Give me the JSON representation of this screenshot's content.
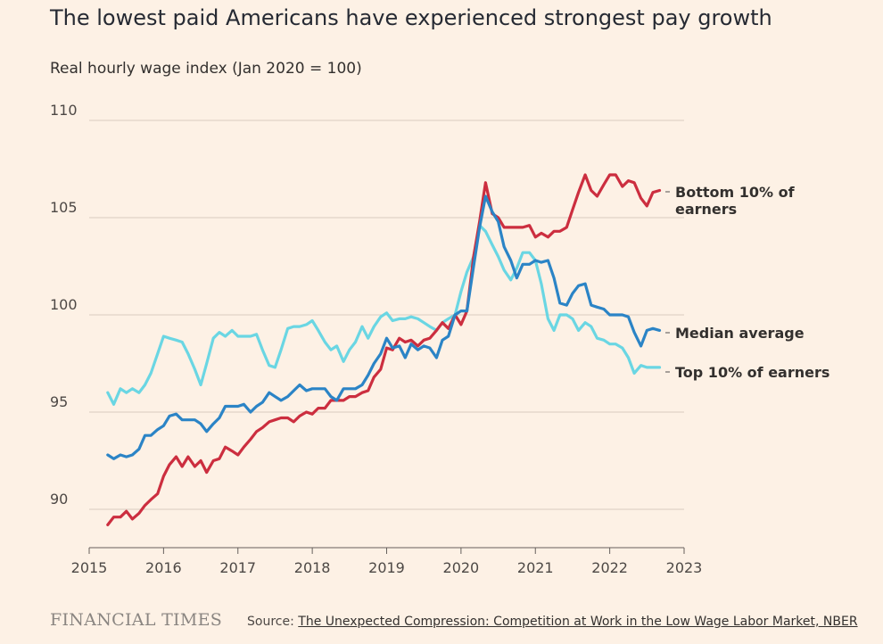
{
  "header": {
    "title": "The lowest paid Americans have experienced strongest pay growth",
    "subtitle": "Real hourly wage index (Jan 2020 = 100)"
  },
  "footer": {
    "brand": "FINANCIAL TIMES",
    "source_prefix": "Source: ",
    "source_link": "The Unexpected Compression: Competition at Work in the Low Wage Labor Market, NBER"
  },
  "colors": {
    "background": "#fdf1e5",
    "grid": "#d9cbbf",
    "bottom10": "#cc2e3f",
    "median": "#2b84c6",
    "top10": "#6ad6e3"
  },
  "chart_data": {
    "type": "line",
    "title": "The lowest paid Americans have experienced strongest pay growth",
    "ylabel": "Real hourly wage index (Jan 2020 = 100)",
    "xlabel": "",
    "xlim": [
      2015,
      2023
    ],
    "ylim": [
      88,
      110
    ],
    "yticks": [
      90,
      95,
      100,
      105,
      110
    ],
    "xticks": [
      2015,
      2016,
      2017,
      2018,
      2019,
      2020,
      2021,
      2022,
      2023
    ],
    "grid": true,
    "legend": "direct labels at right end of lines",
    "series": [
      {
        "name": "Bottom 10% of earners",
        "label_lines": [
          "Bottom 10% of",
          "earners"
        ],
        "color": "#cc2e3f",
        "x": [
          2015.25,
          2015.33,
          2015.42,
          2015.5,
          2015.58,
          2015.67,
          2015.75,
          2015.83,
          2015.92,
          2016,
          2016.08,
          2016.17,
          2016.25,
          2016.33,
          2016.42,
          2016.5,
          2016.58,
          2016.67,
          2016.75,
          2016.83,
          2016.92,
          2017,
          2017.08,
          2017.17,
          2017.25,
          2017.33,
          2017.42,
          2017.5,
          2017.58,
          2017.67,
          2017.75,
          2017.83,
          2017.92,
          2018,
          2018.08,
          2018.17,
          2018.25,
          2018.33,
          2018.42,
          2018.5,
          2018.58,
          2018.67,
          2018.75,
          2018.83,
          2018.92,
          2019,
          2019.08,
          2019.17,
          2019.25,
          2019.33,
          2019.42,
          2019.5,
          2019.58,
          2019.67,
          2019.75,
          2019.83,
          2019.92,
          2020,
          2020.08,
          2020.17,
          2020.25,
          2020.33,
          2020.42,
          2020.5,
          2020.58,
          2020.67,
          2020.75,
          2020.83,
          2020.92,
          2021,
          2021.08,
          2021.17,
          2021.25,
          2021.33,
          2021.42,
          2021.5,
          2021.58,
          2021.67,
          2021.75,
          2021.83,
          2021.92,
          2022,
          2022.08,
          2022.17,
          2022.25,
          2022.33,
          2022.42,
          2022.5,
          2022.58,
          2022.67
        ],
        "values": [
          89.2,
          89.6,
          89.6,
          89.9,
          89.5,
          89.8,
          90.2,
          90.5,
          90.8,
          91.7,
          92.3,
          92.7,
          92.2,
          92.7,
          92.2,
          92.5,
          91.9,
          92.5,
          92.6,
          93.2,
          93.0,
          92.8,
          93.2,
          93.6,
          94.0,
          94.2,
          94.5,
          94.6,
          94.7,
          94.7,
          94.5,
          94.8,
          95.0,
          94.9,
          95.2,
          95.2,
          95.6,
          95.6,
          95.6,
          95.8,
          95.8,
          96.0,
          96.1,
          96.8,
          97.2,
          98.3,
          98.2,
          98.8,
          98.6,
          98.7,
          98.4,
          98.7,
          98.8,
          99.2,
          99.6,
          99.3,
          100.0,
          99.5,
          100.2,
          103.0,
          104.8,
          106.8,
          105.2,
          105.0,
          104.5,
          104.5,
          104.5,
          104.5,
          104.6,
          104.0,
          104.2,
          104.0,
          104.3,
          104.3,
          104.5,
          105.4,
          106.3,
          107.2,
          106.4,
          106.1,
          106.7,
          107.2,
          107.2,
          106.6,
          106.9,
          106.8,
          106.0,
          105.6,
          106.3,
          106.4
        ]
      },
      {
        "name": "Median average",
        "label_lines": [
          "Median average"
        ],
        "color": "#2b84c6",
        "x": [
          2015.25,
          2015.33,
          2015.42,
          2015.5,
          2015.58,
          2015.67,
          2015.75,
          2015.83,
          2015.92,
          2016,
          2016.08,
          2016.17,
          2016.25,
          2016.33,
          2016.42,
          2016.5,
          2016.58,
          2016.67,
          2016.75,
          2016.83,
          2016.92,
          2017,
          2017.08,
          2017.17,
          2017.25,
          2017.33,
          2017.42,
          2017.5,
          2017.58,
          2017.67,
          2017.75,
          2017.83,
          2017.92,
          2018,
          2018.08,
          2018.17,
          2018.25,
          2018.33,
          2018.42,
          2018.5,
          2018.58,
          2018.67,
          2018.75,
          2018.83,
          2018.92,
          2019,
          2019.08,
          2019.17,
          2019.25,
          2019.33,
          2019.42,
          2019.5,
          2019.58,
          2019.67,
          2019.75,
          2019.83,
          2019.92,
          2020,
          2020.08,
          2020.17,
          2020.25,
          2020.33,
          2020.42,
          2020.5,
          2020.58,
          2020.67,
          2020.75,
          2020.83,
          2020.92,
          2021,
          2021.08,
          2021.17,
          2021.25,
          2021.33,
          2021.42,
          2021.5,
          2021.58,
          2021.67,
          2021.75,
          2021.83,
          2021.92,
          2022,
          2022.08,
          2022.17,
          2022.25,
          2022.33,
          2022.42,
          2022.5,
          2022.58,
          2022.67
        ],
        "values": [
          92.8,
          92.6,
          92.8,
          92.7,
          92.8,
          93.1,
          93.8,
          93.8,
          94.1,
          94.3,
          94.8,
          94.9,
          94.6,
          94.6,
          94.6,
          94.4,
          94.0,
          94.4,
          94.7,
          95.3,
          95.3,
          95.3,
          95.4,
          95.0,
          95.3,
          95.5,
          96.0,
          95.8,
          95.6,
          95.8,
          96.1,
          96.4,
          96.1,
          96.2,
          96.2,
          96.2,
          95.8,
          95.6,
          96.2,
          96.2,
          96.2,
          96.4,
          96.9,
          97.5,
          98.0,
          98.8,
          98.3,
          98.4,
          97.8,
          98.5,
          98.2,
          98.4,
          98.3,
          97.8,
          98.7,
          98.9,
          100.0,
          100.2,
          100.2,
          102.5,
          104.5,
          106.1,
          105.3,
          104.8,
          103.5,
          102.8,
          101.9,
          102.6,
          102.6,
          102.8,
          102.7,
          102.8,
          101.9,
          100.6,
          100.5,
          101.1,
          101.5,
          101.6,
          100.5,
          100.4,
          100.3,
          100.0,
          100.0,
          100.0,
          99.9,
          99.1,
          98.4,
          99.2,
          99.3,
          99.2
        ]
      },
      {
        "name": "Top 10% of earners",
        "label_lines": [
          "Top 10% of earners"
        ],
        "color": "#6ad6e3",
        "x": [
          2015.25,
          2015.33,
          2015.42,
          2015.5,
          2015.58,
          2015.67,
          2015.75,
          2015.83,
          2015.92,
          2016,
          2016.08,
          2016.17,
          2016.25,
          2016.33,
          2016.42,
          2016.5,
          2016.58,
          2016.67,
          2016.75,
          2016.83,
          2016.92,
          2017,
          2017.08,
          2017.17,
          2017.25,
          2017.33,
          2017.42,
          2017.5,
          2017.58,
          2017.67,
          2017.75,
          2017.83,
          2017.92,
          2018,
          2018.08,
          2018.17,
          2018.25,
          2018.33,
          2018.42,
          2018.5,
          2018.58,
          2018.67,
          2018.75,
          2018.83,
          2018.92,
          2019,
          2019.08,
          2019.17,
          2019.25,
          2019.33,
          2019.42,
          2019.5,
          2019.58,
          2019.67,
          2019.75,
          2019.83,
          2019.92,
          2020,
          2020.08,
          2020.17,
          2020.25,
          2020.33,
          2020.42,
          2020.5,
          2020.58,
          2020.67,
          2020.75,
          2020.83,
          2020.92,
          2021,
          2021.08,
          2021.17,
          2021.25,
          2021.33,
          2021.42,
          2021.5,
          2021.58,
          2021.67,
          2021.75,
          2021.83,
          2021.92,
          2022,
          2022.08,
          2022.17,
          2022.25,
          2022.33,
          2022.42,
          2022.5,
          2022.58,
          2022.67
        ],
        "values": [
          96.0,
          95.4,
          96.2,
          96.0,
          96.2,
          96.0,
          96.4,
          97.0,
          98.0,
          98.9,
          98.8,
          98.7,
          98.6,
          98.0,
          97.2,
          96.4,
          97.5,
          98.8,
          99.1,
          98.9,
          99.2,
          98.9,
          98.9,
          98.9,
          99.0,
          98.2,
          97.4,
          97.3,
          98.2,
          99.3,
          99.4,
          99.4,
          99.5,
          99.7,
          99.2,
          98.6,
          98.2,
          98.4,
          97.6,
          98.2,
          98.6,
          99.4,
          98.8,
          99.4,
          99.9,
          100.1,
          99.7,
          99.8,
          99.8,
          99.9,
          99.8,
          99.6,
          99.4,
          99.2,
          99.6,
          99.8,
          100.0,
          101.2,
          102.2,
          103.0,
          104.6,
          104.3,
          103.6,
          103.0,
          102.3,
          101.8,
          102.4,
          103.2,
          103.2,
          102.8,
          101.6,
          99.8,
          99.2,
          100.0,
          100.0,
          99.8,
          99.2,
          99.6,
          99.4,
          98.8,
          98.7,
          98.5,
          98.5,
          98.3,
          97.8,
          97.0,
          97.4,
          97.3,
          97.3,
          97.3
        ]
      }
    ]
  }
}
